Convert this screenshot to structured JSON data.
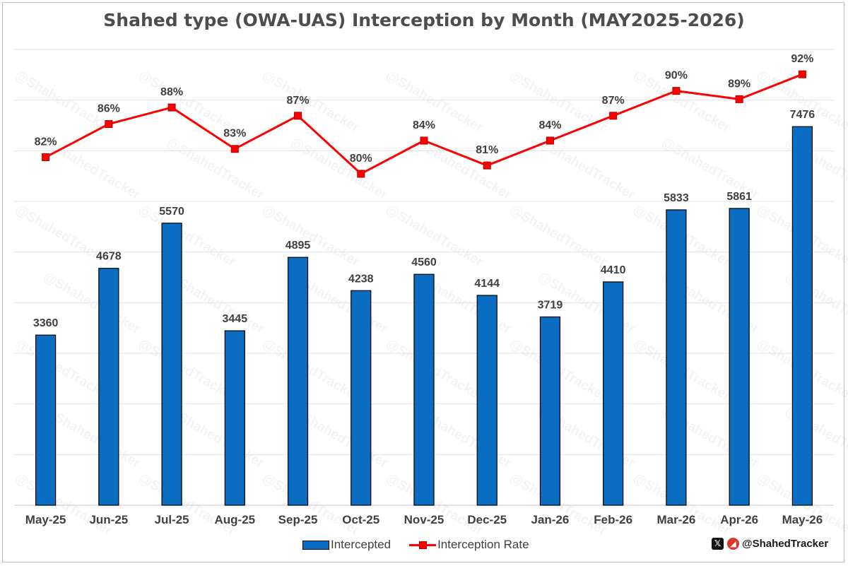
{
  "watermark": "@ShahedTracker",
  "legend": {
    "bar_label": "Intercepted",
    "line_label": "Interception Rate"
  },
  "branding": {
    "x_icon": "x-logo-icon",
    "logo_icon": "shahed-tracker-logo-icon",
    "handle": "@ShahedTracker"
  },
  "colors": {
    "bar": "#0a6dc2",
    "line": "#ff0000",
    "text": "#404040"
  },
  "chart_data": {
    "type": "bar",
    "title": "Shahed type (OWA-UAS) Interception by Month (MAY2025-2026)",
    "categories": [
      "May-25",
      "Jun-25",
      "Jul-25",
      "Aug-25",
      "Sep-25",
      "Oct-25",
      "Nov-25",
      "Dec-25",
      "Jan-26",
      "Feb-26",
      "Mar-26",
      "Apr-26",
      "May-26"
    ],
    "series": [
      {
        "name": "Intercepted",
        "type": "bar",
        "axis": "left",
        "values": [
          3360,
          4678,
          5570,
          3445,
          4895,
          4238,
          4560,
          4144,
          3719,
          4410,
          5833,
          5861,
          7476
        ],
        "labels": [
          "3360",
          "4678",
          "5570",
          "3445",
          "4895",
          "4238",
          "4560",
          "4144",
          "3719",
          "4410",
          "5833",
          "5861",
          "7476"
        ]
      },
      {
        "name": "Interception Rate",
        "type": "line",
        "axis": "right",
        "values": [
          82,
          86,
          88,
          83,
          87,
          80,
          84,
          81,
          84,
          87,
          90,
          89,
          92
        ],
        "labels": [
          "82%",
          "86%",
          "88%",
          "83%",
          "87%",
          "80%",
          "84%",
          "81%",
          "84%",
          "87%",
          "90%",
          "89%",
          "92%"
        ]
      }
    ],
    "ylim_left": [
      0,
      9000
    ],
    "ylim_right": [
      40,
      95
    ],
    "grid": true,
    "legend_position": "bottom"
  }
}
